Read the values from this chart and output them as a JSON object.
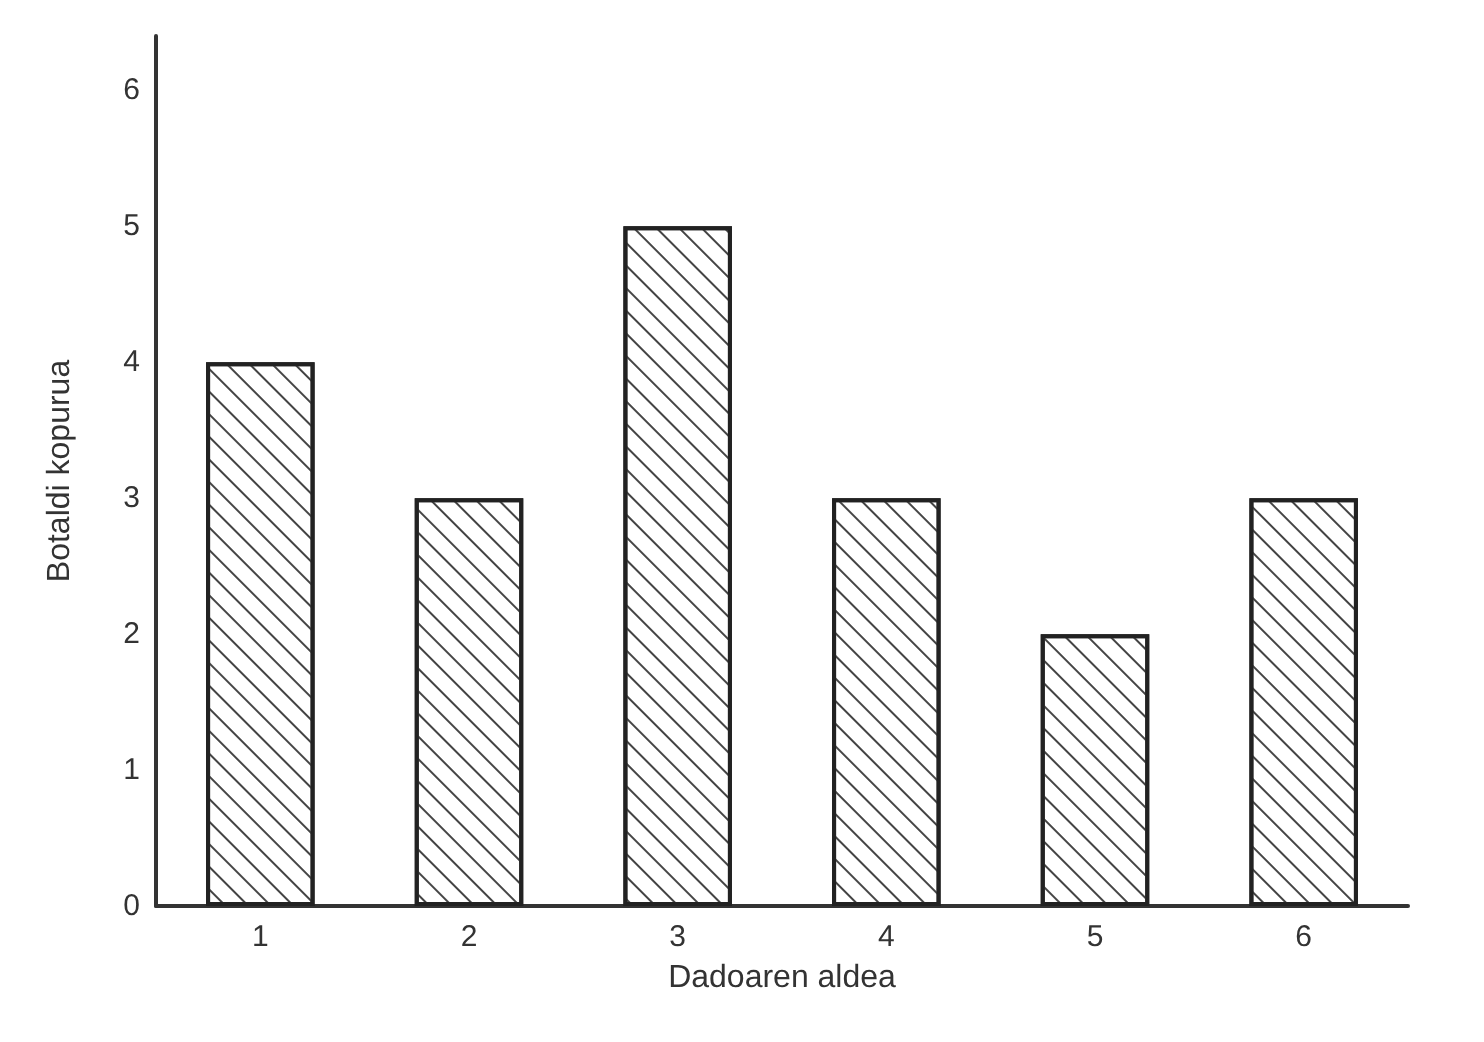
{
  "chart_data": {
    "type": "bar",
    "xlabel": "Dadoaren aldea",
    "ylabel": "Botaldi kopurua",
    "categories": [
      "1",
      "2",
      "3",
      "4",
      "5",
      "6"
    ],
    "values": [
      4,
      3,
      5,
      3,
      2,
      3
    ],
    "color": "#ffffff",
    "ylim": [
      0,
      6.4
    ],
    "yticks": [
      0,
      1,
      2,
      3,
      4,
      5,
      6
    ],
    "grid": false
  }
}
